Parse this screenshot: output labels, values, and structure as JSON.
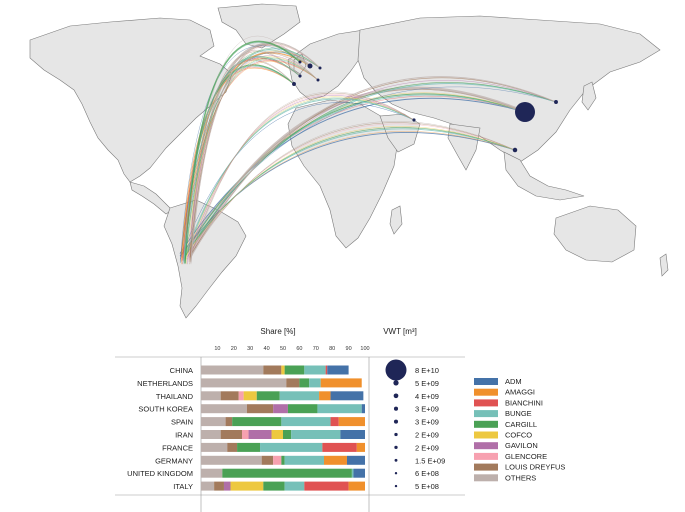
{
  "colors": {
    "land": "#e6e6e6",
    "ocean": "#ffffff",
    "border": "#7a7a7a",
    "bubble": "#1f2657",
    "companies": {
      "ADM": "#4472a8",
      "AMAGGI": "#f0902c",
      "BIANCHINI": "#e05252",
      "BUNGE": "#76c0b8",
      "CARGILL": "#4aa155",
      "COFCO": "#edc840",
      "GAVILON": "#b06fa8",
      "GLENCORE": "#f7a1b0",
      "LOUIS DREYFUS": "#a27a5c",
      "OTHERS": "#bdb0ac"
    }
  },
  "panel": {
    "share_title": "Share [%]",
    "vwt_title": "VWT [m³]",
    "share_ticks": [
      "10",
      "20",
      "30",
      "40",
      "50",
      "60",
      "70",
      "80",
      "90",
      "100"
    ]
  },
  "countries": [
    {
      "name": "CHINA",
      "vwt": "8 E+10",
      "vwt_value": 80000000000,
      "shares": {
        "OTHERS": 38,
        "LOUIS DREYFUS": 11,
        "BIANCHINI": 1,
        "CARGILL": 12,
        "BUNGE": 13,
        "ADM": 13,
        "AMAGGI": 0,
        "COFCO": 2,
        "GAVILON": 0,
        "GLENCORE": 0
      }
    },
    {
      "name": "NETHERLANDS",
      "vwt": "5 E+09",
      "vwt_value": 5000000000,
      "shares": {
        "OTHERS": 52,
        "LOUIS DREYFUS": 8,
        "CARGILL": 6,
        "BUNGE": 7,
        "AMAGGI": 25,
        "ADM": 0,
        "BIANCHINI": 0,
        "COFCO": 0,
        "GAVILON": 0,
        "GLENCORE": 0
      }
    },
    {
      "name": "THAILAND",
      "vwt": "4 E+09",
      "vwt_value": 4000000000,
      "shares": {
        "OTHERS": 12,
        "LOUIS DREYFUS": 11,
        "GLENCORE": 3,
        "COFCO": 8,
        "CARGILL": 14,
        "BUNGE": 24,
        "AMAGGI": 7,
        "ADM": 20,
        "BIANCHINI": 0,
        "GAVILON": 0
      }
    },
    {
      "name": "SOUTH KOREA",
      "vwt": "3 E+09",
      "vwt_value": 3000000000,
      "shares": {
        "OTHERS": 28,
        "LOUIS DREYFUS": 16,
        "GAVILON": 9,
        "CARGILL": 18,
        "BUNGE": 27,
        "ADM": 2,
        "AMAGGI": 0,
        "BIANCHINI": 0,
        "COFCO": 0,
        "GLENCORE": 0
      }
    },
    {
      "name": "SPAIN",
      "vwt": "3 E+09",
      "vwt_value": 3000000000,
      "shares": {
        "OTHERS": 15,
        "LOUIS DREYFUS": 4,
        "CARGILL": 30,
        "BUNGE": 30,
        "BIANCHINI": 5,
        "AMAGGI": 16,
        "ADM": 0,
        "COFCO": 0,
        "GAVILON": 0,
        "GLENCORE": 0
      }
    },
    {
      "name": "IRAN",
      "vwt": "2 E+09",
      "vwt_value": 2000000000,
      "shares": {
        "OTHERS": 12,
        "LOUIS DREYFUS": 13,
        "GLENCORE": 4,
        "GAVILON": 14,
        "COFCO": 7,
        "CARGILL": 5,
        "BUNGE": 30,
        "ADM": 15,
        "AMAGGI": 0,
        "BIANCHINI": 0
      }
    },
    {
      "name": "FRANCE",
      "vwt": "2 E+09",
      "vwt_value": 2000000000,
      "shares": {
        "OTHERS": 16,
        "LOUIS DREYFUS": 6,
        "CARGILL": 14,
        "BUNGE": 38,
        "BIANCHINI": 21,
        "AMAGGI": 5,
        "ADM": 0,
        "COFCO": 0,
        "GAVILON": 0,
        "GLENCORE": 0
      }
    },
    {
      "name": "GERMANY",
      "vwt": "1.5 E+09",
      "vwt_value": 1500000000,
      "shares": {
        "OTHERS": 37,
        "LOUIS DREYFUS": 7,
        "GLENCORE": 5,
        "CARGILL": 2,
        "BUNGE": 24,
        "AMAGGI": 14,
        "ADM": 11,
        "BIANCHINI": 0,
        "COFCO": 0,
        "GAVILON": 0
      }
    },
    {
      "name": "UNITED KINGDOM",
      "vwt": "6 E+08",
      "vwt_value": 600000000,
      "shares": {
        "OTHERS": 13,
        "CARGILL": 79,
        "BUNGE": 1,
        "ADM": 7,
        "AMAGGI": 0,
        "BIANCHINI": 0,
        "COFCO": 0,
        "GAVILON": 0,
        "GLENCORE": 0,
        "LOUIS DREYFUS": 0
      }
    },
    {
      "name": "ITALY",
      "vwt": "5 E+08",
      "vwt_value": 500000000,
      "shares": {
        "OTHERS": 8,
        "LOUIS DREYFUS": 6,
        "GAVILON": 4,
        "COFCO": 20,
        "CARGILL": 13,
        "BUNGE": 12,
        "BIANCHINI": 27,
        "AMAGGI": 10,
        "ADM": 0,
        "GLENCORE": 0
      }
    }
  ],
  "legend": [
    "ADM",
    "AMAGGI",
    "BIANCHINI",
    "BUNGE",
    "CARGILL",
    "COFCO",
    "GAVILON",
    "GLENCORE",
    "LOUIS DREYFUS",
    "OTHERS"
  ],
  "flows": [
    {
      "dest": "CHINA",
      "total_vwt": 80000000000
    },
    {
      "dest": "NETHERLANDS",
      "total_vwt": 5000000000
    },
    {
      "dest": "THAILAND",
      "total_vwt": 4000000000
    },
    {
      "dest": "SOUTH KOREA",
      "total_vwt": 3000000000
    },
    {
      "dest": "SPAIN",
      "total_vwt": 3000000000
    },
    {
      "dest": "IRAN",
      "total_vwt": 2000000000
    },
    {
      "dest": "FRANCE",
      "total_vwt": 2000000000
    },
    {
      "dest": "GERMANY",
      "total_vwt": 1500000000
    },
    {
      "dest": "UNITED KINGDOM",
      "total_vwt": 600000000
    },
    {
      "dest": "ITALY",
      "total_vwt": 500000000
    }
  ]
}
